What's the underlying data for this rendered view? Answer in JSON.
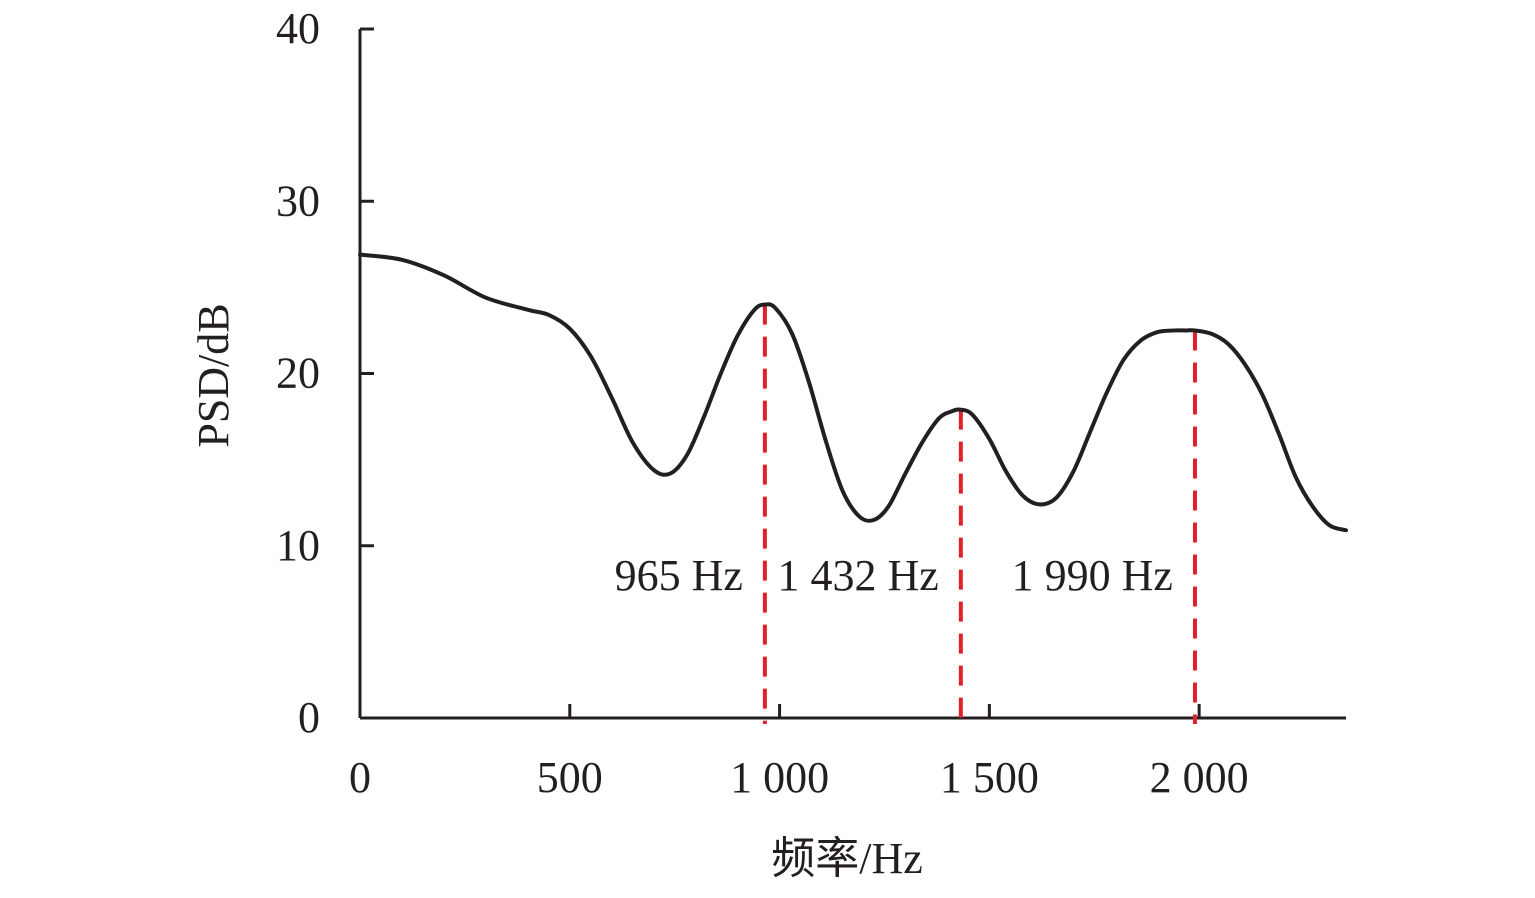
{
  "chart_data": {
    "type": "line",
    "xlabel": "频率/Hz",
    "ylabel": "PSD/dB",
    "xlim": [
      0,
      2350
    ],
    "ylim": [
      0,
      40
    ],
    "x_ticks": [
      {
        "value": 0,
        "label": "0"
      },
      {
        "value": 500,
        "label": "500"
      },
      {
        "value": 1000,
        "label": "1 000"
      },
      {
        "value": 1500,
        "label": "1 500"
      },
      {
        "value": 2000,
        "label": "2 000"
      }
    ],
    "y_ticks": [
      {
        "value": 0,
        "label": "0"
      },
      {
        "value": 10,
        "label": "10"
      },
      {
        "value": 20,
        "label": "20"
      },
      {
        "value": 30,
        "label": "30"
      },
      {
        "value": 40,
        "label": "40"
      }
    ],
    "grid": false,
    "legend": "none",
    "series": [
      {
        "color": "#231f20",
        "x": [
          0,
          100,
          200,
          300,
          400,
          450,
          500,
          550,
          600,
          650,
          700,
          740,
          780,
          820,
          860,
          900,
          940,
          965,
          990,
          1030,
          1070,
          1110,
          1150,
          1190,
          1225,
          1260,
          1300,
          1340,
          1380,
          1410,
          1432,
          1460,
          1500,
          1540,
          1580,
          1620,
          1660,
          1700,
          1740,
          1780,
          1820,
          1860,
          1900,
          1940,
          1970,
          1990,
          2030,
          2070,
          2110,
          2150,
          2190,
          2230,
          2270,
          2310,
          2350
        ],
        "y": [
          26.9,
          26.6,
          25.7,
          24.4,
          23.7,
          23.4,
          22.6,
          21.0,
          18.6,
          16.0,
          14.4,
          14.2,
          15.3,
          17.5,
          20.0,
          22.2,
          23.7,
          24.0,
          23.8,
          22.3,
          19.5,
          16.1,
          13.2,
          11.7,
          11.5,
          12.3,
          14.2,
          16.0,
          17.4,
          17.8,
          17.9,
          17.6,
          16.2,
          14.3,
          12.9,
          12.4,
          12.8,
          14.3,
          16.6,
          18.9,
          20.8,
          21.9,
          22.4,
          22.5,
          22.5,
          22.5,
          22.3,
          21.7,
          20.5,
          18.8,
          16.5,
          14.0,
          12.3,
          11.2,
          10.9
        ]
      }
    ],
    "annotations": [
      {
        "x": 965,
        "y": 24.0,
        "label": "965 Hz",
        "color": "#e0202a"
      },
      {
        "x": 1432,
        "y": 17.9,
        "label": "1 432 Hz",
        "color": "#e0202a"
      },
      {
        "x": 1990,
        "y": 22.5,
        "label": "1 990 Hz",
        "color": "#e0202a"
      }
    ]
  }
}
